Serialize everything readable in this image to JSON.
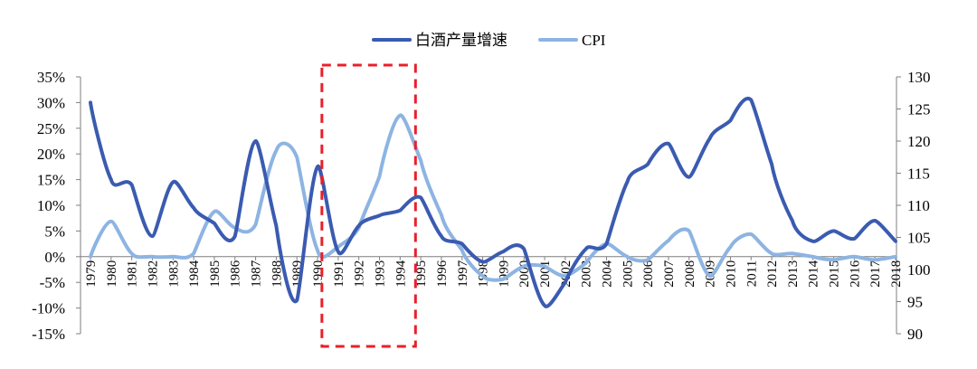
{
  "chart_data": {
    "type": "line",
    "title": "",
    "legend_position": "top-center",
    "grid": false,
    "x": [
      "1979",
      "1980",
      "1981",
      "1982",
      "1983",
      "1984",
      "1985",
      "1986",
      "1987",
      "1988",
      "1989",
      "1990",
      "1991",
      "1992",
      "1993",
      "1994",
      "1995",
      "1996",
      "1997",
      "1998",
      "1999",
      "2000",
      "2001",
      "2002",
      "2003",
      "2004",
      "2005",
      "2006",
      "2007",
      "2008",
      "2009",
      "2010",
      "2011",
      "2012",
      "2013",
      "2014",
      "2015",
      "2016",
      "2017",
      "2018"
    ],
    "series": [
      {
        "name": "白酒产量增速",
        "axis": "left",
        "color": "#3a5bb0",
        "values": [
          30,
          15,
          14,
          4,
          14.5,
          9.5,
          6.5,
          4,
          22.5,
          6,
          -8.5,
          17.5,
          1,
          6,
          8,
          9,
          11.5,
          4,
          2.5,
          -1,
          1,
          1.5,
          -9.5,
          -5,
          1.5,
          2.5,
          14.5,
          18,
          22,
          15.5,
          23,
          26.5,
          30.5,
          18,
          7,
          3,
          5,
          3.5,
          7,
          3
        ]
      },
      {
        "name": "CPI",
        "axis": "right",
        "color": "#8db4e2",
        "values": [
          102,
          107.5,
          102.5,
          102,
          102,
          102.5,
          109,
          106.5,
          107,
          118.5,
          117.5,
          103,
          103.5,
          106.5,
          114.5,
          124,
          117,
          108.5,
          103,
          99,
          98.5,
          100.5,
          100.5,
          99,
          101,
          104,
          102,
          101.5,
          104.5,
          106,
          99,
          103.5,
          105.5,
          102.5,
          102.5,
          102,
          101.5,
          102,
          101.5,
          102
        ]
      }
    ],
    "y_left": {
      "min": -15,
      "max": 35,
      "step": 5,
      "tick_labels": [
        "-15%",
        "-10%",
        "-5%",
        "0%",
        "5%",
        "10%",
        "15%",
        "20%",
        "25%",
        "30%",
        "35%"
      ]
    },
    "y_right": {
      "min": 90,
      "max": 130,
      "step": 5,
      "tick_labels": [
        "90",
        "95",
        "100",
        "105",
        "110",
        "115",
        "120",
        "125",
        "130"
      ]
    },
    "highlight": {
      "shape": "dashed-rectangle",
      "color": "#e8202a",
      "x_from": "1991",
      "x_to": "1994"
    }
  }
}
